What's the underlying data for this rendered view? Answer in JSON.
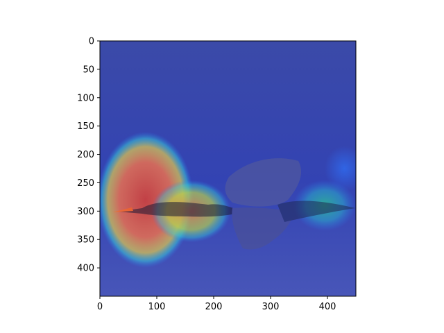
{
  "chart_data": {
    "type": "heatmap",
    "title": "",
    "xlabel": "",
    "ylabel": "",
    "xlim": [
      0,
      450
    ],
    "ylim": [
      450,
      0
    ],
    "x_ticks": [
      0,
      100,
      200,
      300,
      400
    ],
    "y_ticks": [
      0,
      50,
      100,
      150,
      200,
      250,
      300,
      350,
      400
    ],
    "x_tick_labels": [
      "0",
      "100",
      "200",
      "300",
      "400"
    ],
    "y_tick_labels": [
      "0",
      "50",
      "100",
      "150",
      "200",
      "250",
      "300",
      "350",
      "400"
    ],
    "colormap": "jet",
    "background_value": 0.1,
    "hotspots": [
      {
        "name": "head-region",
        "cx": 80,
        "cy": 280,
        "rx": 85,
        "ry": 120,
        "value": 1.0
      },
      {
        "name": "neck-region",
        "cx": 160,
        "cy": 300,
        "rx": 70,
        "ry": 55,
        "value": 0.7
      },
      {
        "name": "tail-region",
        "cx": 395,
        "cy": 290,
        "rx": 55,
        "ry": 45,
        "value": 0.55
      },
      {
        "name": "right-edge-region",
        "cx": 430,
        "cy": 225,
        "rx": 35,
        "ry": 40,
        "value": 0.35
      }
    ]
  },
  "colors": {
    "axis": "#000000",
    "background_blue": "#2f3fb0",
    "cool": "#2a8cf0",
    "cyan": "#37c8d8",
    "mid": "#c7d24a",
    "warm": "#e27c55",
    "hot": "#c94040"
  }
}
